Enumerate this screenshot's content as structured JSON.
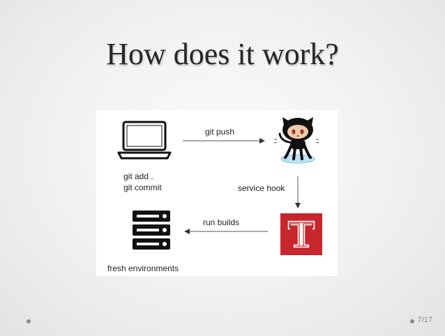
{
  "slide": {
    "title": "How does it work?",
    "page_number": "7/17"
  },
  "diagram": {
    "edges": {
      "push": "git push",
      "hook": "service hook",
      "builds": "run builds"
    },
    "local_commands": [
      "git add .",
      "git commit"
    ],
    "servers_caption": "fresh environments",
    "nodes": {
      "laptop": "laptop-icon",
      "github": "octocat-icon",
      "ci": "travis-t-icon",
      "servers": "server-stack-icon"
    },
    "colors": {
      "ci_red": "#c8252c",
      "arrow": "#555555"
    }
  }
}
